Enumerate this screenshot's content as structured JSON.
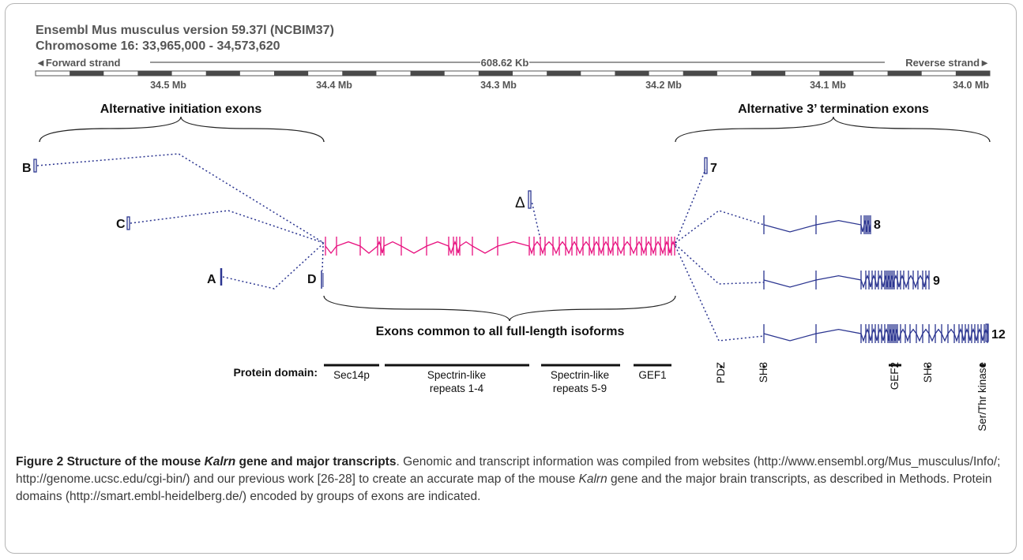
{
  "header": {
    "line1": "Ensembl Mus musculus version 59.37l (NCBIM37)",
    "line2": "Chromosome 16: 33,965,000 - 34,573,620",
    "forward_strand": "◄Forward strand",
    "length": "608.62 Kb",
    "reverse_strand": "Reverse strand►"
  },
  "scale_ticks": [
    "34.5 Mb",
    "34.4 Mb",
    "34.3 Mb",
    "34.2 Mb",
    "34.1 Mb",
    "34.0 Mb"
  ],
  "groups": {
    "alt_initiation": "Alternative initiation exons",
    "alt_termination": "Alternative 3’ termination exons",
    "common": "Exons common to all full-length isoforms"
  },
  "exon_labels": {
    "B": "B",
    "C": "C",
    "A": "A",
    "D": "D",
    "delta": "Δ",
    "t7": "7",
    "t8": "8",
    "t9": "9",
    "t12": "12"
  },
  "protein_domains": {
    "label": "Protein domain:",
    "horizontal": [
      {
        "line1": "Sec14p",
        "line2": ""
      },
      {
        "line1": "Spectrin-like",
        "line2": "repeats 1-4"
      },
      {
        "line1": "Spectrin-like",
        "line2": "repeats 5-9"
      },
      {
        "line1": "GEF1",
        "line2": ""
      }
    ],
    "vertical": [
      "PDZ",
      "SH3",
      "GEF2",
      "SH3",
      "Ser/Thr kinase"
    ]
  },
  "colors": {
    "common_exons": "#e8117f",
    "transcripts": "#2b3590",
    "header_text": "#555555"
  },
  "caption": {
    "title": "Figure 2 Structure of the mouse ",
    "gene": "Kalrn",
    "title_end": " gene and major transcripts",
    "text1": ". Genomic and transcript information was compiled from websites (http://www.ensembl.org/Mus_musculus/Info/; http://genome.ucsc.edu/cgi-bin/) and our previous work [26-28] to create an accurate map of the mouse ",
    "gene2": "Kalrn",
    "text2": " gene and the major brain transcripts, as described in Methods. Protein domains (http://smart.embl-heidelberg.de/) encoded by groups of exons are indicated."
  }
}
